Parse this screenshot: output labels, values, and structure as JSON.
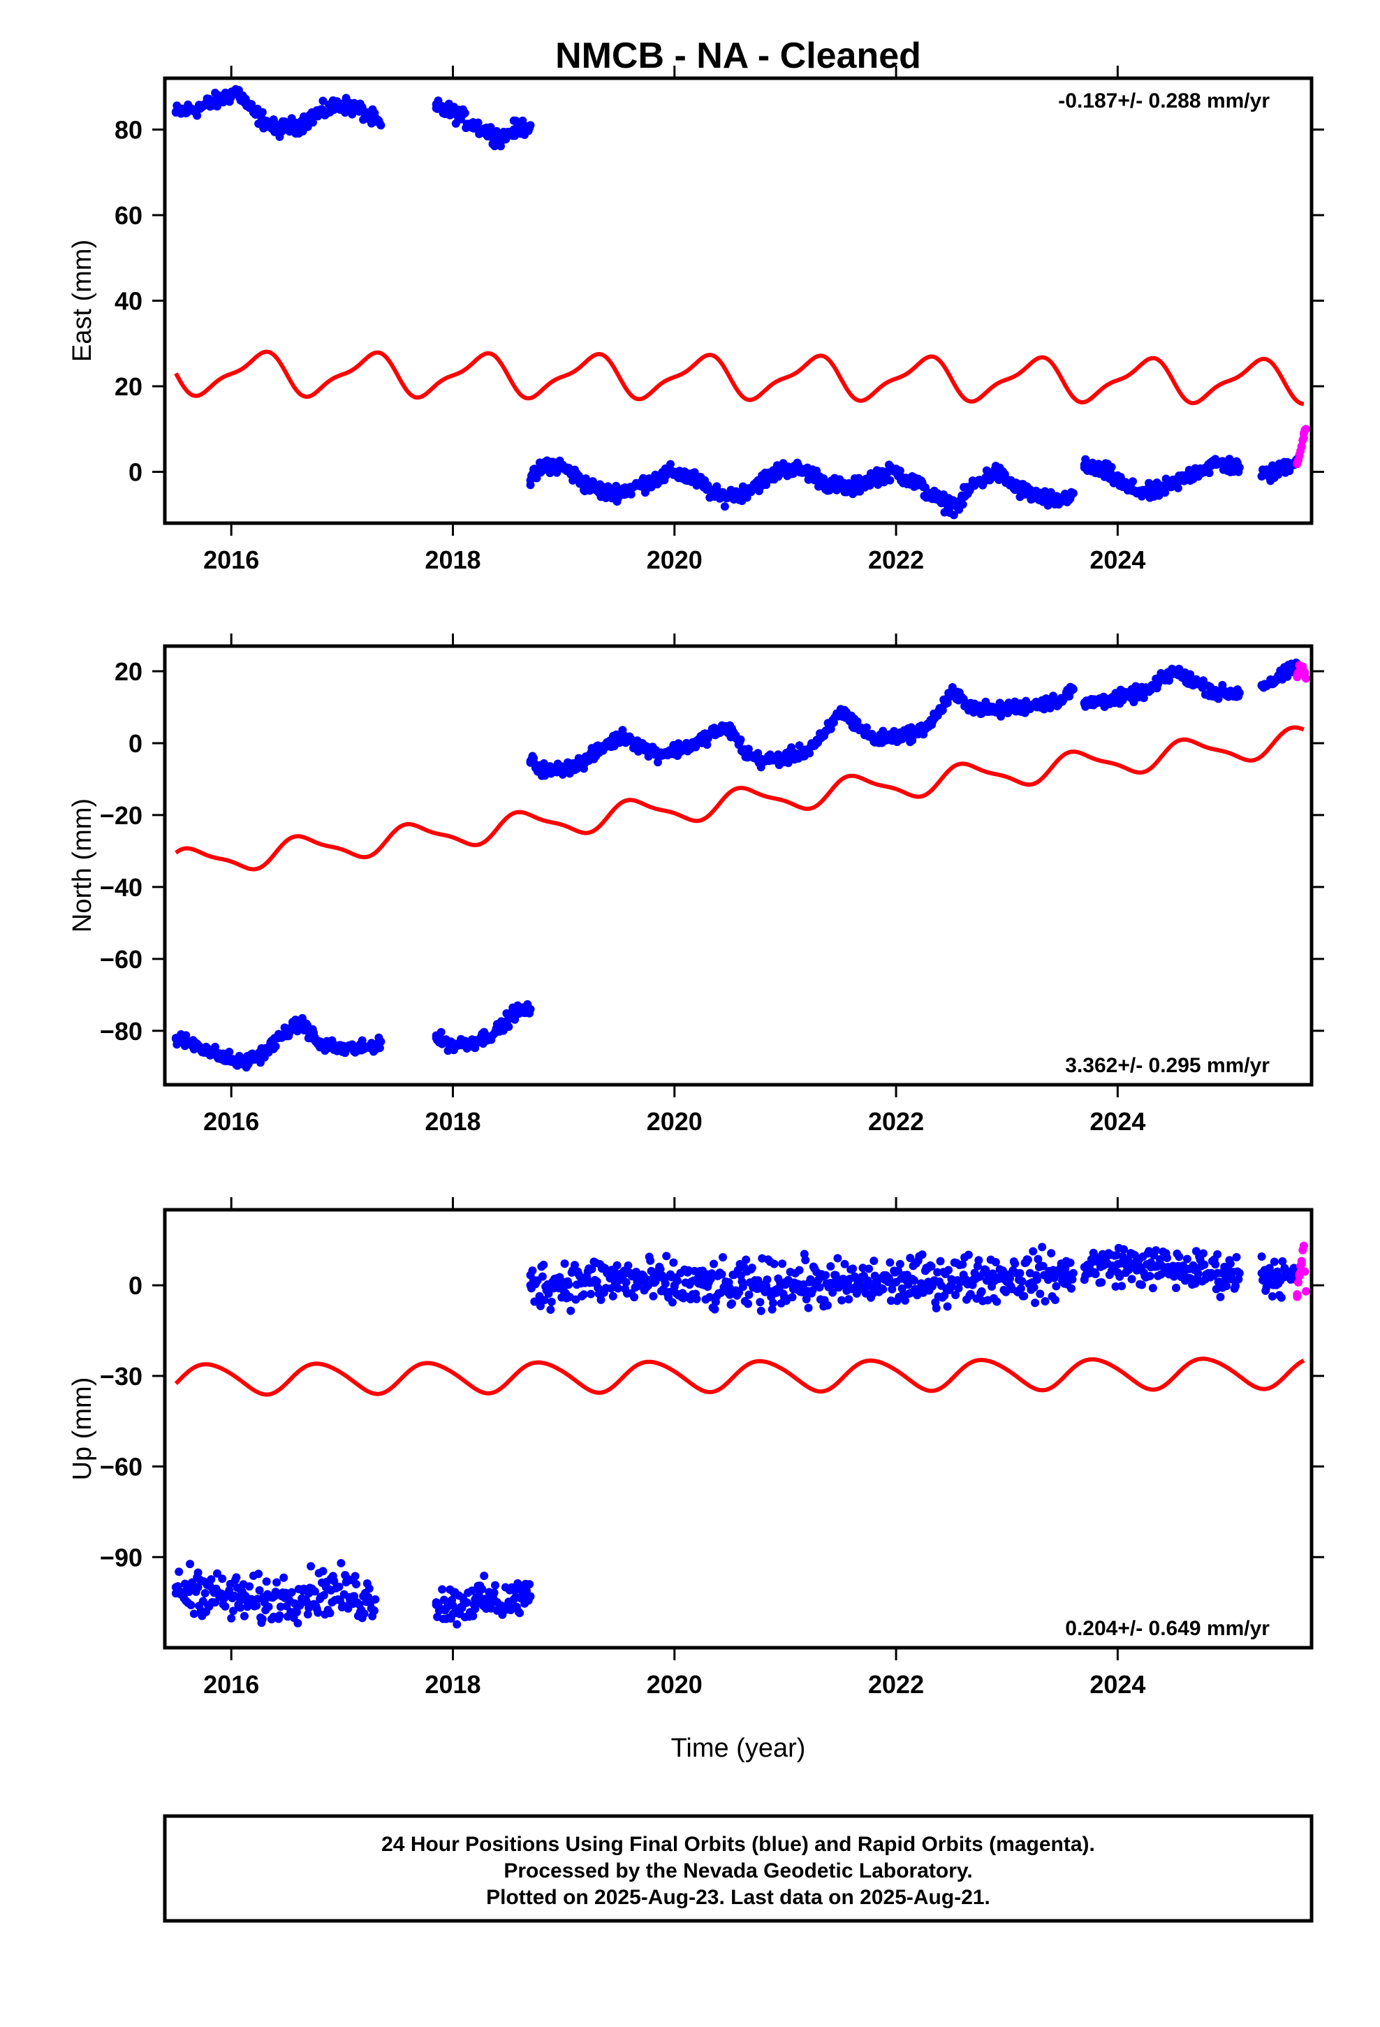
{
  "title": "NMCB  - NA - Cleaned",
  "x_axis_label": "Time (year)",
  "footer": {
    "line1": "24 Hour Positions Using Final Orbits (blue) and Rapid Orbits (magenta).",
    "line2": "Processed by the Nevada Geodetic Laboratory.",
    "line3": "Plotted on 2025-Aug-23. Last data on 2025-Aug-21."
  },
  "colors": {
    "final_orbits": "#0000ff",
    "rapid_orbits": "#ff00ff",
    "model": "#ff0000",
    "frame": "#000000"
  },
  "chart_data": [
    {
      "type": "scatter",
      "name": "east",
      "ylabel": "East (mm)",
      "rate_label": "-0.187+/- 0.288 mm/yr",
      "rate_position": "top-right",
      "xlim": [
        2015.4,
        2025.75
      ],
      "ylim": [
        -12,
        92
      ],
      "x_ticks": [
        2016,
        2018,
        2020,
        2022,
        2024
      ],
      "x_tick_labels": [
        "2016",
        "2018",
        "2020",
        "2022",
        "2024"
      ],
      "y_ticks": [
        0,
        20,
        40,
        60,
        80
      ],
      "y_tick_labels": [
        "0",
        "20",
        "40",
        "60",
        "80"
      ],
      "grid": false,
      "series": [
        {
          "role": "final",
          "x": [
            2015.5,
            2015.7,
            2015.9,
            2016.05,
            2016.2,
            2016.4,
            2016.6,
            2016.8,
            2017.0,
            2017.2,
            2017.35
          ],
          "y": [
            84,
            85,
            87,
            89,
            84,
            80,
            81,
            84,
            86,
            84,
            81
          ]
        },
        {
          "role": "final",
          "x": [
            2017.85,
            2018.0,
            2018.2,
            2018.35,
            2018.45,
            2018.55,
            2018.7
          ],
          "y": [
            85,
            84,
            81,
            79,
            78,
            80,
            81
          ]
        },
        {
          "role": "final",
          "x": [
            2018.7,
            2018.85,
            2019.0,
            2019.2,
            2019.4,
            2019.6,
            2019.8,
            2020.0,
            2020.2,
            2020.4,
            2020.6,
            2020.8,
            2021.0,
            2021.2,
            2021.4,
            2021.6,
            2021.8,
            2022.0,
            2022.2,
            2022.4,
            2022.55,
            2022.7,
            2022.9,
            2023.1,
            2023.3,
            2023.45,
            2023.6
          ],
          "y": [
            -2,
            2,
            1,
            -3,
            -5,
            -4,
            -2,
            0,
            -2,
            -6,
            -5,
            -2,
            1,
            0,
            -3,
            -4,
            -1,
            0,
            -3,
            -7,
            -8,
            -3,
            0,
            -4,
            -6,
            -7,
            -5
          ]
        },
        {
          "role": "final",
          "x": [
            2023.7,
            2023.9,
            2024.1,
            2024.3,
            2024.5,
            2024.7,
            2024.9,
            2025.1
          ],
          "y": [
            1,
            0,
            -4,
            -5,
            -3,
            0,
            2,
            1
          ]
        },
        {
          "role": "final",
          "x": [
            2025.3,
            2025.45,
            2025.55,
            2025.62
          ],
          "y": [
            -1,
            0,
            2,
            3
          ]
        },
        {
          "role": "rapid",
          "x": [
            2025.62,
            2025.64,
            2025.66,
            2025.68,
            2025.7
          ],
          "y": [
            2,
            4,
            6,
            8,
            10
          ]
        },
        {
          "role": "model",
          "x_start": 2015.5,
          "x_end": 2025.68,
          "baseline": 23.0,
          "slope_per_year": -0.187,
          "annual_amplitude": 4.5,
          "annual_phase": 0.0,
          "semiannual_amplitude": 1.5,
          "semiannual_phase": 0.25
        }
      ]
    },
    {
      "type": "scatter",
      "name": "north",
      "ylabel": "North (mm)",
      "rate_label": "3.362+/- 0.295 mm/yr",
      "rate_position": "bottom-right",
      "xlim": [
        2015.4,
        2025.75
      ],
      "ylim": [
        -95,
        27
      ],
      "x_ticks": [
        2016,
        2018,
        2020,
        2022,
        2024
      ],
      "x_tick_labels": [
        "2016",
        "2018",
        "2020",
        "2022",
        "2024"
      ],
      "y_ticks": [
        -80,
        -60,
        -40,
        -20,
        0,
        20
      ],
      "y_tick_labels": [
        "−80",
        "−60",
        "−40",
        "−20",
        "0",
        "20"
      ],
      "grid": false,
      "series": [
        {
          "role": "final",
          "x": [
            2015.5,
            2015.7,
            2015.9,
            2016.1,
            2016.3,
            2016.5,
            2016.65,
            2016.8,
            2017.0,
            2017.2,
            2017.35
          ],
          "y": [
            -82,
            -84,
            -87,
            -89,
            -86,
            -80,
            -78,
            -84,
            -85,
            -85,
            -83
          ]
        },
        {
          "role": "final",
          "x": [
            2017.85,
            2018.0,
            2018.2,
            2018.4,
            2018.55,
            2018.7
          ],
          "y": [
            -82,
            -84,
            -83,
            -80,
            -75,
            -74
          ]
        },
        {
          "role": "final",
          "x": [
            2018.7,
            2018.85,
            2019.0,
            2019.2,
            2019.4,
            2019.55,
            2019.7,
            2019.85,
            2020.0,
            2020.2,
            2020.35,
            2020.5,
            2020.65,
            2020.8,
            2021.0,
            2021.2,
            2021.35,
            2021.5,
            2021.65,
            2021.8,
            2022.0,
            2022.2,
            2022.35,
            2022.5,
            2022.7,
            2022.9,
            2023.1,
            2023.3,
            2023.5,
            2023.6
          ],
          "y": [
            -5,
            -8,
            -7,
            -5,
            0,
            2,
            -1,
            -3,
            -2,
            0,
            3,
            4,
            -3,
            -5,
            -4,
            -2,
            2,
            9,
            5,
            1,
            2,
            3,
            7,
            14,
            10,
            9,
            10,
            11,
            12,
            15
          ]
        },
        {
          "role": "final",
          "x": [
            2023.7,
            2023.9,
            2024.1,
            2024.3,
            2024.5,
            2024.7,
            2024.9,
            2025.1
          ],
          "y": [
            11,
            12,
            13,
            15,
            20,
            17,
            14,
            14
          ]
        },
        {
          "role": "final",
          "x": [
            2025.3,
            2025.45,
            2025.55,
            2025.62
          ],
          "y": [
            16,
            18,
            20,
            22
          ]
        },
        {
          "role": "rapid",
          "x": [
            2025.62,
            2025.65,
            2025.68,
            2025.7
          ],
          "y": [
            19,
            21,
            20,
            18
          ]
        },
        {
          "role": "model",
          "x_start": 2015.5,
          "x_end": 2025.68,
          "baseline": -33.5,
          "slope_per_year": 3.362,
          "annual_amplitude": 3.5,
          "annual_phase": 0.6,
          "semiannual_amplitude": 1.0,
          "semiannual_phase": 0.1
        }
      ]
    },
    {
      "type": "scatter",
      "name": "up",
      "ylabel": "Up (mm)",
      "rate_label": "0.204+/- 0.649 mm/yr",
      "rate_position": "bottom-right",
      "xlim": [
        2015.4,
        2025.75
      ],
      "ylim": [
        -120,
        25
      ],
      "x_ticks": [
        2016,
        2018,
        2020,
        2022,
        2024
      ],
      "x_tick_labels": [
        "2016",
        "2018",
        "2020",
        "2022",
        "2024"
      ],
      "y_ticks": [
        -90,
        -60,
        -30,
        0
      ],
      "y_tick_labels": [
        "−90",
        "−60",
        "−30",
        "0"
      ],
      "grid": false,
      "series": [
        {
          "role": "final",
          "x": [
            2015.5,
            2015.7,
            2015.9,
            2016.1,
            2016.3,
            2016.5,
            2016.7,
            2016.9,
            2017.1,
            2017.3
          ],
          "y": [
            -102,
            -100,
            -103,
            -104,
            -105,
            -103,
            -102,
            -101,
            -103,
            -104
          ],
          "spread": 6
        },
        {
          "role": "final",
          "x": [
            2017.85,
            2018.0,
            2018.2,
            2018.4,
            2018.55,
            2018.7
          ],
          "y": [
            -105,
            -106,
            -104,
            -105,
            -104,
            -103
          ],
          "spread": 5
        },
        {
          "role": "final",
          "x": [
            2018.7,
            2019.0,
            2019.5,
            2020.0,
            2020.5,
            2021.0,
            2021.5,
            2022.0,
            2022.5,
            2023.0,
            2023.5,
            2023.6
          ],
          "y": [
            0,
            1,
            2,
            0,
            -1,
            1,
            0,
            1,
            2,
            3,
            3,
            4
          ],
          "spread": 6
        },
        {
          "role": "final",
          "x": [
            2023.7,
            2024.0,
            2024.3,
            2024.6,
            2024.9,
            2025.1
          ],
          "y": [
            6,
            7,
            6,
            5,
            4,
            4
          ],
          "spread": 5
        },
        {
          "role": "final",
          "x": [
            2025.3,
            2025.45,
            2025.6
          ],
          "y": [
            4,
            3,
            2
          ],
          "spread": 5
        },
        {
          "role": "rapid",
          "x": [
            2025.62,
            2025.64,
            2025.66,
            2025.68,
            2025.7
          ],
          "y": [
            -3,
            3,
            8,
            13,
            -2
          ]
        },
        {
          "role": "model",
          "x_start": 2015.5,
          "x_end": 2025.68,
          "baseline": -31.0,
          "slope_per_year": 0.204,
          "annual_amplitude": 5.0,
          "annual_phase": 0.45,
          "semiannual_amplitude": 0.5,
          "semiannual_phase": 0.0
        }
      ]
    }
  ]
}
